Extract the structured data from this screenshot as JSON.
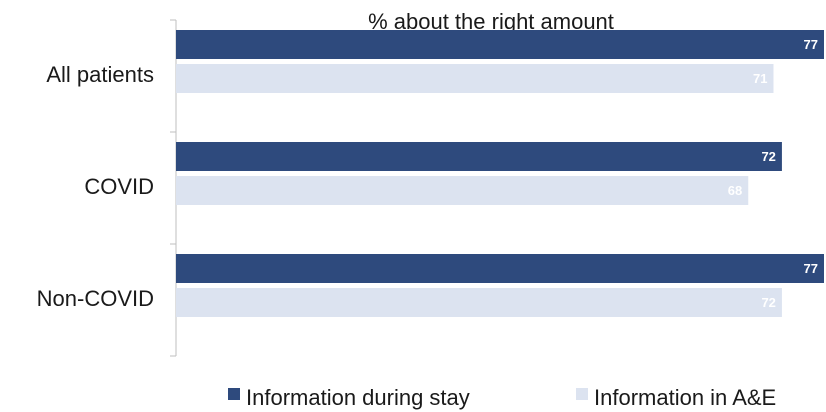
{
  "chart_data": {
    "type": "bar",
    "orientation": "horizontal",
    "title": "% about the right amount",
    "categories": [
      "All patients",
      "COVID",
      "Non-COVID"
    ],
    "series": [
      {
        "name": "Information during stay",
        "values": [
          77,
          72,
          77
        ],
        "color": "#2e4a7d"
      },
      {
        "name": "Information in A&E",
        "values": [
          71,
          68,
          72
        ],
        "color": "#dce3f0"
      }
    ],
    "xlim": [
      0,
      77
    ],
    "grid": false,
    "legend_position": "bottom"
  }
}
